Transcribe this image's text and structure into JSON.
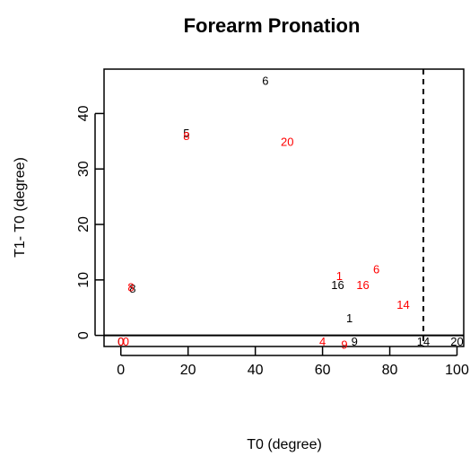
{
  "chart_data": {
    "type": "scatter",
    "title": "Forearm Pronation",
    "xlabel": "T0 (degree)",
    "ylabel": "T1- T0 (degree)",
    "xlim": [
      -5,
      102
    ],
    "ylim": [
      -2,
      48
    ],
    "x_ticks": [
      0,
      20,
      40,
      60,
      80,
      100
    ],
    "y_ticks": [
      0,
      10,
      20,
      30,
      40
    ],
    "reference_lines": [
      {
        "orientation": "horizontal",
        "value": 0,
        "style": "solid",
        "color": "#000000"
      },
      {
        "orientation": "vertical",
        "value": 90,
        "style": "dashed",
        "color": "#000000"
      }
    ],
    "series": [
      {
        "color": "#000000",
        "points": [
          {
            "x": 43,
            "y": 46,
            "label": "6"
          },
          {
            "x": 19.5,
            "y": 36.5,
            "label": "5"
          },
          {
            "x": 3.5,
            "y": 8.5,
            "label": "8"
          },
          {
            "x": 64.5,
            "y": 9.2,
            "label": "16"
          },
          {
            "x": 68,
            "y": 3.2,
            "label": "1"
          },
          {
            "x": 69.5,
            "y": -1,
            "label": "9"
          },
          {
            "x": 90,
            "y": -1,
            "label": "14"
          },
          {
            "x": 100,
            "y": -1,
            "label": "20"
          },
          {
            "x": 0,
            "y": -1,
            "label": "0"
          }
        ]
      },
      {
        "color": "#ff0000",
        "points": [
          {
            "x": 49.5,
            "y": 35,
            "label": "20"
          },
          {
            "x": 19.5,
            "y": 36,
            "label": "8"
          },
          {
            "x": 3,
            "y": 8.8,
            "label": "8"
          },
          {
            "x": 65,
            "y": 10.8,
            "label": "1"
          },
          {
            "x": 76,
            "y": 12,
            "label": "6"
          },
          {
            "x": 72,
            "y": 9.2,
            "label": "16"
          },
          {
            "x": 84,
            "y": 5.6,
            "label": "14"
          },
          {
            "x": 60,
            "y": -1,
            "label": "4"
          },
          {
            "x": 66.5,
            "y": -1.6,
            "label": "9"
          },
          {
            "x": 0,
            "y": -1,
            "label": "0"
          },
          {
            "x": 1.5,
            "y": -1,
            "label": "0"
          }
        ]
      }
    ]
  }
}
